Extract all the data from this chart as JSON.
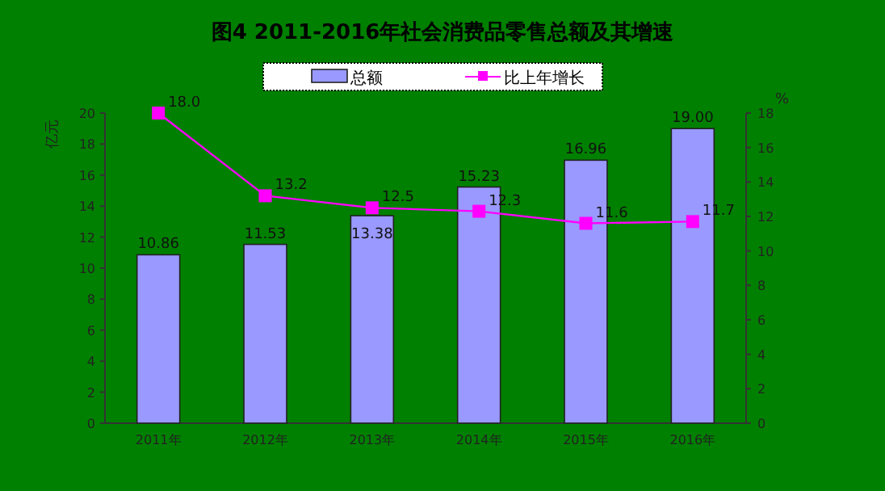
{
  "chart_data": {
    "type": "bar",
    "title": "图4   2011-2016年社会消费品零售总额及其增速",
    "categories": [
      "2011年",
      "2012年",
      "2013年",
      "2014年",
      "2015年",
      "2016年"
    ],
    "series": [
      {
        "name": "总额",
        "color": "#9999ff",
        "values": [
          10.86,
          11.53,
          13.38,
          15.23,
          16.96,
          19.0
        ],
        "value_labels": [
          "10.86",
          "11.53",
          "13.38",
          "15.23",
          "16.96",
          "19.00"
        ]
      },
      {
        "name": "比上年增长",
        "type": "line",
        "axis": "y2",
        "color": "#ff00ff",
        "values": [
          18.0,
          13.2,
          12.5,
          12.3,
          11.6,
          11.7
        ],
        "value_labels": [
          "18.0",
          "13.2",
          "12.5",
          "12.3",
          "11.6",
          "11.7"
        ]
      }
    ],
    "ylabel": "亿元",
    "y2label": "%",
    "ylim": [
      0,
      20
    ],
    "yticks": [
      0,
      2,
      4,
      6,
      8,
      10,
      12,
      14,
      16,
      18,
      20
    ],
    "y2lim": [
      0,
      18
    ],
    "y2ticks": [
      0,
      2,
      4,
      6,
      8,
      10,
      12,
      14,
      16,
      18
    ],
    "legend": "top",
    "grid": false,
    "marker": "square"
  }
}
